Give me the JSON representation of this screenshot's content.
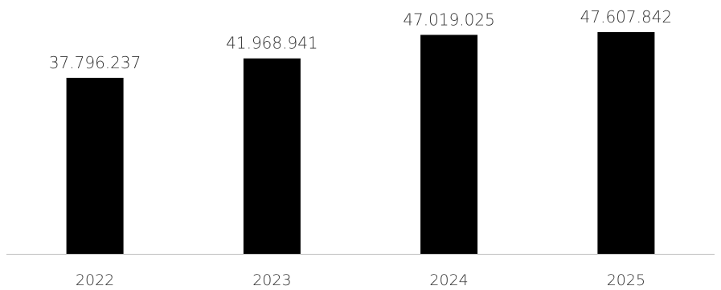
{
  "chart_data": {
    "type": "bar",
    "categories": [
      "2022",
      "2023",
      "2024",
      "2025"
    ],
    "values": [
      37796237,
      41968941,
      47019025,
      47607842
    ],
    "data_labels": [
      "37.796.237",
      "41.968.941",
      "47.019.025",
      "47.607.842"
    ],
    "title": "",
    "xlabel": "",
    "ylabel": "",
    "ylim": [
      0,
      50000000
    ],
    "grid": false,
    "legend": "none",
    "bar_color": "#000000",
    "axis_color": "#bfbfbf",
    "text_color": "#333333"
  }
}
